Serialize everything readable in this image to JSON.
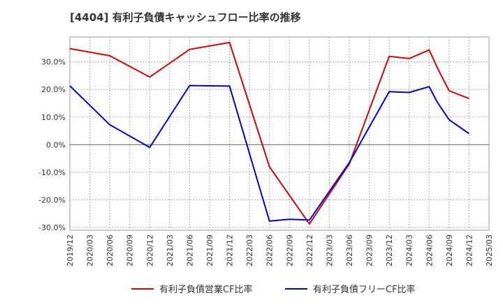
{
  "chart_data": {
    "type": "line",
    "title": "[4404]  有利子負債キャッシュフロー比率の推移",
    "xlabel": "",
    "ylabel": "",
    "ylim": [
      -31,
      39
    ],
    "yticks": [
      30,
      20,
      10,
      0,
      -10,
      -20,
      -30
    ],
    "ytick_labels": [
      "30.0%",
      "20.0%",
      "10.0%",
      "0.0%",
      "-10.0%",
      "-20.0%",
      "-30.0%"
    ],
    "x_tick_labels": [
      "2019/12",
      "2020/03",
      "2020/06",
      "2020/09",
      "2020/12",
      "2021/03",
      "2021/06",
      "2021/09",
      "2021/12",
      "2022/03",
      "2022/06",
      "2022/09",
      "2022/12",
      "2023/03",
      "2023/06",
      "2023/09",
      "2023/12",
      "2024/03",
      "2024/06",
      "2024/09",
      "2024/12",
      "2025/03"
    ],
    "grid": true,
    "legend_position": "bottom",
    "series": [
      {
        "name": "有利子負債営業CF比率",
        "color": "#e00000",
        "x": [
          0,
          2,
          4,
          6,
          8,
          10,
          12,
          14,
          16,
          17,
          18,
          18.4,
          19,
          20
        ],
        "values": [
          34.8,
          32.2,
          24.5,
          34.5,
          37.0,
          -8.0,
          -28.7,
          -7.0,
          32.0,
          31.2,
          34.3,
          28.0,
          19.5,
          16.7
        ]
      },
      {
        "name": "有利子負債フリーCF比率",
        "color": "#0000dd",
        "x": [
          0,
          2,
          4,
          6,
          8,
          10,
          11,
          12,
          14,
          16,
          17,
          18,
          18.4,
          19,
          20
        ],
        "values": [
          21.3,
          7.2,
          -1.0,
          21.4,
          21.2,
          -27.7,
          -27.0,
          -27.3,
          -6.5,
          19.2,
          18.9,
          21.0,
          15.5,
          9.0,
          4.0
        ]
      }
    ]
  }
}
